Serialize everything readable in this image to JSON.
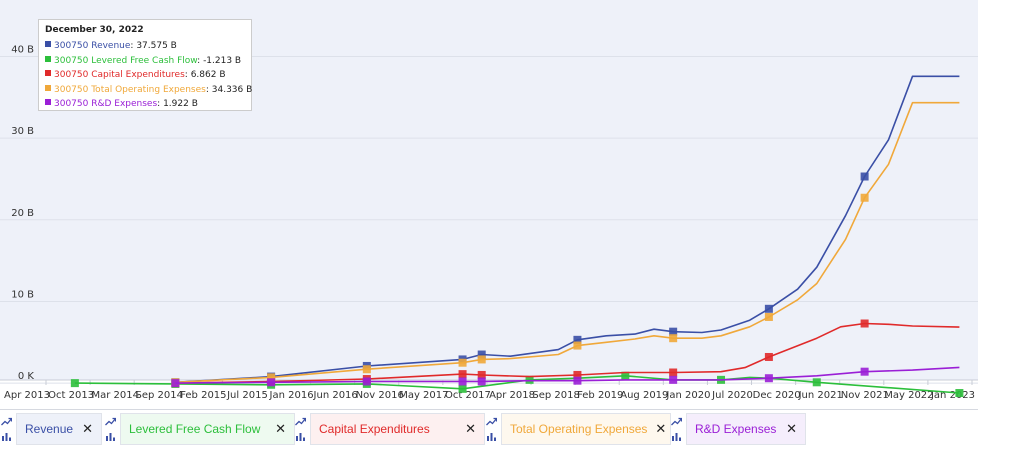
{
  "chart_data": {
    "type": "line",
    "ticker": "300750",
    "x_labels": [
      "Apr 2013",
      "Oct 2013",
      "Mar 2014",
      "Sep 2014",
      "Feb 2015",
      "Jul 2015",
      "Jan 2016",
      "Jun 2016",
      "Nov 2016",
      "May 2017",
      "Oct 2017",
      "Apr 2018",
      "Sep 2018",
      "Feb 2019",
      "Aug 2019",
      "Jan 2020",
      "Jul 2020",
      "Dec 2020",
      "Jun 2021",
      "Nov 2021",
      "May 2022",
      "Jan 2023"
    ],
    "y_ticks": [
      0,
      10,
      20,
      30,
      40
    ],
    "y_tick_labels": [
      "0 K",
      "10 B",
      "20 B",
      "30 B",
      "40 B"
    ],
    "ylim": [
      -1.7,
      45.2
    ],
    "xlim": [
      2013.25,
      2023.08
    ],
    "units": "Billions",
    "series": [
      {
        "name": "Revenue",
        "color": "#3a4fa6",
        "x": [
          2014.8,
          2015.8,
          2016.8,
          2017.8,
          2018.0,
          2018.3,
          2018.8,
          2019.0,
          2019.3,
          2019.6,
          2019.8,
          2020.0,
          2020.3,
          2020.5,
          2020.8,
          2021.0,
          2021.3,
          2021.5,
          2021.8,
          2022.0,
          2022.25,
          2022.5,
          2022.75,
          2022.99
        ],
        "y": [
          0.1,
          0.8,
          2.1,
          2.9,
          3.5,
          3.3,
          4.1,
          5.3,
          5.8,
          6.0,
          6.6,
          6.3,
          6.2,
          6.5,
          7.7,
          9.1,
          11.5,
          14.2,
          20.5,
          25.3,
          29.8,
          37.575,
          37.575,
          37.575
        ],
        "markers": [
          2014.8,
          2015.8,
          2016.8,
          2017.8,
          2018.0,
          2019.0,
          2020.0,
          2021.0,
          2022.0
        ]
      },
      {
        "name": "Levered Free Cash Flow",
        "color": "#2cbf3b",
        "x": [
          2013.75,
          2014.8,
          2015.8,
          2016.8,
          2017.8,
          2018.5,
          2019.0,
          2019.5,
          2020.0,
          2020.5,
          2020.8,
          2021.0,
          2021.5,
          2022.99
        ],
        "y": [
          0.0,
          -0.1,
          -0.2,
          -0.1,
          -0.7,
          0.4,
          0.6,
          0.9,
          0.4,
          0.4,
          0.7,
          0.6,
          0.1,
          -1.213
        ],
        "markers": [
          2013.75,
          2014.8,
          2015.8,
          2016.8,
          2017.8,
          2018.5,
          2019.5,
          2020.5,
          2021.5,
          2022.99
        ]
      },
      {
        "name": "Capital Expenditures",
        "color": "#e02a2a",
        "x": [
          2014.8,
          2015.8,
          2016.8,
          2017.8,
          2018.0,
          2018.5,
          2019.0,
          2019.5,
          2020.0,
          2020.5,
          2020.75,
          2021.0,
          2021.5,
          2021.75,
          2022.0,
          2022.25,
          2022.5,
          2022.99
        ],
        "y": [
          0.0,
          0.2,
          0.5,
          1.1,
          1.0,
          0.8,
          1.0,
          1.3,
          1.3,
          1.4,
          1.9,
          3.2,
          5.5,
          6.9,
          7.3,
          7.2,
          7.0,
          6.862
        ],
        "markers": [
          2014.8,
          2015.8,
          2016.8,
          2017.8,
          2018.0,
          2019.0,
          2020.0,
          2021.0,
          2022.0
        ]
      },
      {
        "name": "Total Operating Expenses",
        "color": "#f0a83a",
        "x": [
          2014.8,
          2015.8,
          2016.8,
          2017.8,
          2018.0,
          2018.3,
          2018.8,
          2019.0,
          2019.3,
          2019.6,
          2019.8,
          2020.0,
          2020.3,
          2020.5,
          2020.8,
          2021.0,
          2021.3,
          2021.5,
          2021.8,
          2022.0,
          2022.25,
          2022.5,
          2022.75,
          2022.99
        ],
        "y": [
          0.1,
          0.7,
          1.7,
          2.5,
          2.9,
          3.0,
          3.5,
          4.6,
          5.0,
          5.4,
          5.8,
          5.5,
          5.5,
          5.8,
          6.9,
          8.1,
          10.2,
          12.2,
          17.6,
          22.7,
          26.8,
          34.336,
          34.336,
          34.336
        ],
        "markers": [
          2014.8,
          2015.8,
          2016.8,
          2017.8,
          2018.0,
          2019.0,
          2020.0,
          2021.0,
          2022.0
        ]
      },
      {
        "name": "R&D Expenses",
        "color": "#9a1fd6",
        "x": [
          2014.8,
          2015.8,
          2016.8,
          2017.8,
          2018.0,
          2018.5,
          2019.0,
          2019.5,
          2020.0,
          2020.5,
          2021.0,
          2021.5,
          2022.0,
          2022.5,
          2022.99
        ],
        "y": [
          0.0,
          0.1,
          0.2,
          0.2,
          0.2,
          0.3,
          0.3,
          0.4,
          0.4,
          0.4,
          0.6,
          0.9,
          1.4,
          1.6,
          1.922
        ],
        "markers": [
          2014.8,
          2015.8,
          2016.8,
          2017.8,
          2018.0,
          2019.0,
          2020.0,
          2021.0,
          2022.0
        ]
      }
    ],
    "tooltip": {
      "date": "December 30, 2022",
      "rows": [
        {
          "series": "300750 Revenue",
          "value": "37.575 B",
          "color": "#3a4fa6"
        },
        {
          "series": "300750 Levered Free Cash Flow",
          "value": "-1.213 B",
          "color": "#2cbf3b"
        },
        {
          "series": "300750 Capital Expenditures",
          "value": "6.862 B",
          "color": "#e02a2a"
        },
        {
          "series": "300750 Total Operating Expenses",
          "value": "34.336 B",
          "color": "#f0a83a"
        },
        {
          "series": "300750 R&D Expenses",
          "value": "1.922 B",
          "color": "#9a1fd6"
        }
      ]
    }
  },
  "legend": {
    "items": [
      {
        "label": "Revenue",
        "color": "#3a4fa6",
        "bg": "#eef1f9"
      },
      {
        "label": "Levered Free Cash Flow",
        "color": "#2cbf3b",
        "bg": "#eefaf0"
      },
      {
        "label": "Capital Expenditures",
        "color": "#e02a2a",
        "bg": "#fdf0f0"
      },
      {
        "label": "Total Operating Expenses",
        "color": "#f0a83a",
        "bg": "#fef8ee"
      },
      {
        "label": "R&D Expenses",
        "color": "#9a1fd6",
        "bg": "#f5eefc"
      }
    ],
    "close_symbol": "✕"
  }
}
